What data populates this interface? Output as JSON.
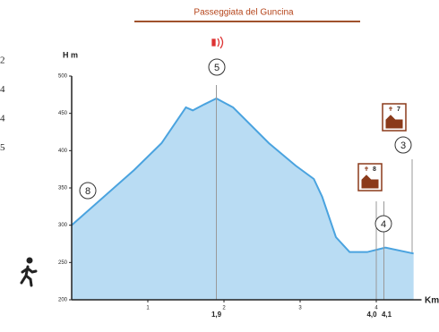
{
  "chart_data": {
    "type": "area",
    "title": "Passeggiata del Guncina",
    "y_label": "H m",
    "x_label": "Km",
    "x": [
      0,
      0.82,
      1.18,
      1.5,
      1.59,
      1.74,
      1.9,
      2.12,
      2.59,
      2.94,
      3.18,
      3.29,
      3.47,
      3.65,
      3.88,
      4.12,
      4.49
    ],
    "values": [
      300,
      374,
      410,
      458,
      454,
      462,
      470,
      458,
      410,
      380,
      362,
      338,
      284,
      264,
      264,
      270,
      262
    ],
    "color": "#4aa3df",
    "fill": "#b9dcf3",
    "xlim": [
      0,
      4.5
    ],
    "ylim": [
      200,
      500
    ],
    "xticks": [
      1,
      2,
      3,
      4
    ],
    "yticks": [
      200,
      250,
      300,
      350,
      400,
      450,
      500
    ],
    "x_annotations": [
      {
        "value": 1.9,
        "label": "1,9"
      },
      {
        "value": 4.0,
        "label": "4,0"
      },
      {
        "value": 4.1,
        "label": "4,1"
      }
    ]
  },
  "markers": [
    "8",
    "5",
    "3",
    "4"
  ],
  "churches": [
    "7",
    "8"
  ],
  "side_numbers": [
    "2",
    "4",
    "4",
    "5"
  ]
}
